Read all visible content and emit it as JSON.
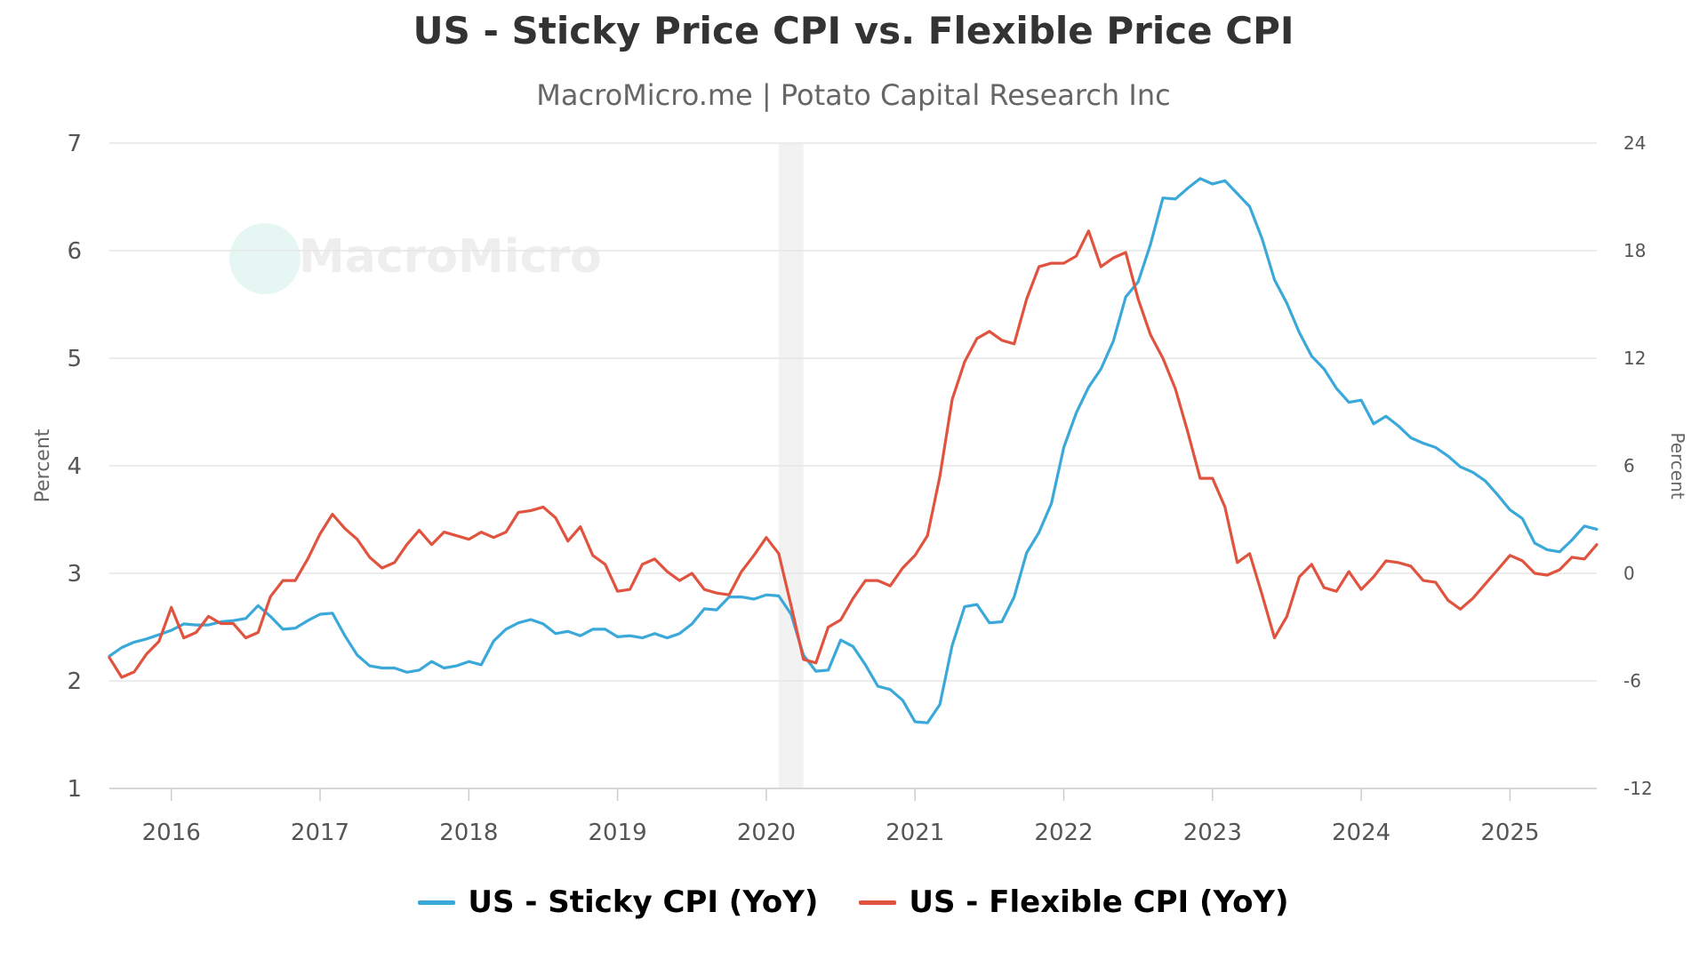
{
  "chart_data": {
    "type": "line",
    "title": "US - Sticky Price CPI vs. Flexible Price CPI",
    "subtitle": "MacroMicro.me | Potato Capital Research Inc",
    "watermark": "MacroMicro",
    "x_ticks": [
      "2016",
      "2017",
      "2018",
      "2019",
      "2020",
      "2021",
      "2022",
      "2023",
      "2024",
      "2025"
    ],
    "left_axis": {
      "label": "Percent",
      "range": [
        1,
        7
      ],
      "ticks": [
        "1",
        "2",
        "3",
        "4",
        "5",
        "6",
        "7"
      ]
    },
    "right_axis": {
      "label": "Percent",
      "range": [
        -12,
        24
      ],
      "ticks": [
        "-12",
        "-6",
        "0",
        "6",
        "12",
        "18",
        "24"
      ]
    },
    "x_range": [
      "2015-08",
      "2025-08"
    ],
    "grid": true,
    "legend_position": "bottom",
    "shaded_region": [
      "2020-02",
      "2020-04"
    ],
    "shaded_color": "#f2f2f2",
    "series": [
      {
        "name": "US - Sticky CPI (YoY)",
        "axis": "left",
        "color": "#3aa9d9",
        "points": [
          [
            "2015-08",
            2.23
          ],
          [
            "2015-09",
            2.31
          ],
          [
            "2015-10",
            2.36
          ],
          [
            "2015-11",
            2.39
          ],
          [
            "2015-12",
            2.43
          ],
          [
            "2016-01",
            2.47
          ],
          [
            "2016-02",
            2.53
          ],
          [
            "2016-03",
            2.52
          ],
          [
            "2016-04",
            2.52
          ],
          [
            "2016-05",
            2.55
          ],
          [
            "2016-06",
            2.56
          ],
          [
            "2016-07",
            2.58
          ],
          [
            "2016-08",
            2.7
          ],
          [
            "2016-09",
            2.6
          ],
          [
            "2016-10",
            2.48
          ],
          [
            "2016-11",
            2.49
          ],
          [
            "2016-12",
            2.56
          ],
          [
            "2017-01",
            2.62
          ],
          [
            "2017-02",
            2.63
          ],
          [
            "2017-03",
            2.42
          ],
          [
            "2017-04",
            2.24
          ],
          [
            "2017-05",
            2.14
          ],
          [
            "2017-06",
            2.12
          ],
          [
            "2017-07",
            2.12
          ],
          [
            "2017-08",
            2.08
          ],
          [
            "2017-09",
            2.1
          ],
          [
            "2017-10",
            2.18
          ],
          [
            "2017-11",
            2.12
          ],
          [
            "2017-12",
            2.14
          ],
          [
            "2018-01",
            2.18
          ],
          [
            "2018-02",
            2.15
          ],
          [
            "2018-03",
            2.37
          ],
          [
            "2018-04",
            2.48
          ],
          [
            "2018-05",
            2.54
          ],
          [
            "2018-06",
            2.57
          ],
          [
            "2018-07",
            2.53
          ],
          [
            "2018-08",
            2.44
          ],
          [
            "2018-09",
            2.46
          ],
          [
            "2018-10",
            2.42
          ],
          [
            "2018-11",
            2.48
          ],
          [
            "2018-12",
            2.48
          ],
          [
            "2019-01",
            2.41
          ],
          [
            "2019-02",
            2.42
          ],
          [
            "2019-03",
            2.4
          ],
          [
            "2019-04",
            2.44
          ],
          [
            "2019-05",
            2.4
          ],
          [
            "2019-06",
            2.44
          ],
          [
            "2019-07",
            2.53
          ],
          [
            "2019-08",
            2.67
          ],
          [
            "2019-09",
            2.66
          ],
          [
            "2019-10",
            2.78
          ],
          [
            "2019-11",
            2.78
          ],
          [
            "2019-12",
            2.76
          ],
          [
            "2020-01",
            2.8
          ],
          [
            "2020-02",
            2.79
          ],
          [
            "2020-03",
            2.62
          ],
          [
            "2020-04",
            2.24
          ],
          [
            "2020-05",
            2.09
          ],
          [
            "2020-06",
            2.1
          ],
          [
            "2020-07",
            2.38
          ],
          [
            "2020-08",
            2.32
          ],
          [
            "2020-09",
            2.15
          ],
          [
            "2020-10",
            1.95
          ],
          [
            "2020-11",
            1.92
          ],
          [
            "2020-12",
            1.82
          ],
          [
            "2021-01",
            1.62
          ],
          [
            "2021-02",
            1.61
          ],
          [
            "2021-03",
            1.78
          ],
          [
            "2021-04",
            2.33
          ],
          [
            "2021-05",
            2.69
          ],
          [
            "2021-06",
            2.71
          ],
          [
            "2021-07",
            2.54
          ],
          [
            "2021-08",
            2.55
          ],
          [
            "2021-09",
            2.78
          ],
          [
            "2021-10",
            3.19
          ],
          [
            "2021-11",
            3.38
          ],
          [
            "2021-12",
            3.65
          ],
          [
            "2022-01",
            4.17
          ],
          [
            "2022-02",
            4.49
          ],
          [
            "2022-03",
            4.73
          ],
          [
            "2022-04",
            4.9
          ],
          [
            "2022-05",
            5.16
          ],
          [
            "2022-06",
            5.57
          ],
          [
            "2022-07",
            5.71
          ],
          [
            "2022-08",
            6.06
          ],
          [
            "2022-09",
            6.49
          ],
          [
            "2022-10",
            6.48
          ],
          [
            "2022-11",
            6.58
          ],
          [
            "2022-12",
            6.67
          ],
          [
            "2023-01",
            6.62
          ],
          [
            "2023-02",
            6.65
          ],
          [
            "2023-03",
            6.53
          ],
          [
            "2023-04",
            6.41
          ],
          [
            "2023-05",
            6.11
          ],
          [
            "2023-06",
            5.73
          ],
          [
            "2023-07",
            5.51
          ],
          [
            "2023-08",
            5.24
          ],
          [
            "2023-09",
            5.02
          ],
          [
            "2023-10",
            4.9
          ],
          [
            "2023-11",
            4.72
          ],
          [
            "2023-12",
            4.59
          ],
          [
            "2024-01",
            4.61
          ],
          [
            "2024-02",
            4.39
          ],
          [
            "2024-03",
            4.46
          ],
          [
            "2024-04",
            4.37
          ],
          [
            "2024-05",
            4.26
          ],
          [
            "2024-06",
            4.21
          ],
          [
            "2024-07",
            4.17
          ],
          [
            "2024-08",
            4.09
          ],
          [
            "2024-09",
            3.99
          ],
          [
            "2024-10",
            3.94
          ],
          [
            "2024-11",
            3.86
          ],
          [
            "2024-12",
            3.73
          ],
          [
            "2025-01",
            3.59
          ],
          [
            "2025-02",
            3.51
          ],
          [
            "2025-03",
            3.28
          ],
          [
            "2025-04",
            3.22
          ],
          [
            "2025-05",
            3.2
          ],
          [
            "2025-06",
            3.31
          ],
          [
            "2025-07",
            3.44
          ],
          [
            "2025-08",
            3.41
          ]
        ]
      },
      {
        "name": "US - Flexible CPI (YoY)",
        "axis": "right",
        "color": "#e0533f",
        "points": [
          [
            "2015-08",
            -4.7
          ],
          [
            "2015-09",
            -5.8
          ],
          [
            "2015-10",
            -5.5
          ],
          [
            "2015-11",
            -4.5
          ],
          [
            "2015-12",
            -3.8
          ],
          [
            "2016-01",
            -1.9
          ],
          [
            "2016-02",
            -3.6
          ],
          [
            "2016-03",
            -3.3
          ],
          [
            "2016-04",
            -2.4
          ],
          [
            "2016-05",
            -2.8
          ],
          [
            "2016-06",
            -2.8
          ],
          [
            "2016-07",
            -3.6
          ],
          [
            "2016-08",
            -3.3
          ],
          [
            "2016-09",
            -1.3
          ],
          [
            "2016-10",
            -0.4
          ],
          [
            "2016-11",
            -0.4
          ],
          [
            "2016-12",
            0.8
          ],
          [
            "2017-01",
            2.2
          ],
          [
            "2017-02",
            3.3
          ],
          [
            "2017-03",
            2.5
          ],
          [
            "2017-04",
            1.9
          ],
          [
            "2017-05",
            0.9
          ],
          [
            "2017-06",
            0.3
          ],
          [
            "2017-07",
            0.6
          ],
          [
            "2017-08",
            1.6
          ],
          [
            "2017-09",
            2.4
          ],
          [
            "2017-10",
            1.6
          ],
          [
            "2017-11",
            2.3
          ],
          [
            "2017-12",
            2.1
          ],
          [
            "2018-01",
            1.9
          ],
          [
            "2018-02",
            2.3
          ],
          [
            "2018-03",
            2.0
          ],
          [
            "2018-04",
            2.3
          ],
          [
            "2018-05",
            3.4
          ],
          [
            "2018-06",
            3.5
          ],
          [
            "2018-07",
            3.7
          ],
          [
            "2018-08",
            3.1
          ],
          [
            "2018-09",
            1.8
          ],
          [
            "2018-10",
            2.6
          ],
          [
            "2018-11",
            1.0
          ],
          [
            "2018-12",
            0.5
          ],
          [
            "2019-01",
            -1.0
          ],
          [
            "2019-02",
            -0.9
          ],
          [
            "2019-03",
            0.5
          ],
          [
            "2019-04",
            0.8
          ],
          [
            "2019-05",
            0.1
          ],
          [
            "2019-06",
            -0.4
          ],
          [
            "2019-07",
            0.0
          ],
          [
            "2019-08",
            -0.9
          ],
          [
            "2019-09",
            -1.1
          ],
          [
            "2019-10",
            -1.2
          ],
          [
            "2019-11",
            0.1
          ],
          [
            "2019-12",
            1.0
          ],
          [
            "2020-01",
            2.0
          ],
          [
            "2020-02",
            1.1
          ],
          [
            "2020-03",
            -1.8
          ],
          [
            "2020-04",
            -4.8
          ],
          [
            "2020-05",
            -5.0
          ],
          [
            "2020-06",
            -3.0
          ],
          [
            "2020-07",
            -2.6
          ],
          [
            "2020-08",
            -1.4
          ],
          [
            "2020-09",
            -0.4
          ],
          [
            "2020-10",
            -0.4
          ],
          [
            "2020-11",
            -0.7
          ],
          [
            "2020-12",
            0.3
          ],
          [
            "2021-01",
            1.0
          ],
          [
            "2021-02",
            2.1
          ],
          [
            "2021-03",
            5.4
          ],
          [
            "2021-04",
            9.7
          ],
          [
            "2021-05",
            11.8
          ],
          [
            "2021-06",
            13.1
          ],
          [
            "2021-07",
            13.5
          ],
          [
            "2021-08",
            13.0
          ],
          [
            "2021-09",
            12.8
          ],
          [
            "2021-10",
            15.3
          ],
          [
            "2021-11",
            17.1
          ],
          [
            "2021-12",
            17.3
          ],
          [
            "2022-01",
            17.3
          ],
          [
            "2022-02",
            17.7
          ],
          [
            "2022-03",
            19.1
          ],
          [
            "2022-04",
            17.1
          ],
          [
            "2022-05",
            17.6
          ],
          [
            "2022-06",
            17.9
          ],
          [
            "2022-07",
            15.3
          ],
          [
            "2022-08",
            13.3
          ],
          [
            "2022-09",
            12.0
          ],
          [
            "2022-10",
            10.3
          ],
          [
            "2022-11",
            7.9
          ],
          [
            "2022-12",
            5.3
          ],
          [
            "2023-01",
            5.3
          ],
          [
            "2023-02",
            3.7
          ],
          [
            "2023-03",
            0.6
          ],
          [
            "2023-04",
            1.1
          ],
          [
            "2023-05",
            -1.2
          ],
          [
            "2023-06",
            -3.6
          ],
          [
            "2023-07",
            -2.4
          ],
          [
            "2023-08",
            -0.2
          ],
          [
            "2023-09",
            0.5
          ],
          [
            "2023-10",
            -0.8
          ],
          [
            "2023-11",
            -1.0
          ],
          [
            "2023-12",
            0.1
          ],
          [
            "2024-01",
            -0.9
          ],
          [
            "2024-02",
            -0.2
          ],
          [
            "2024-03",
            0.7
          ],
          [
            "2024-04",
            0.6
          ],
          [
            "2024-05",
            0.4
          ],
          [
            "2024-06",
            -0.4
          ],
          [
            "2024-07",
            -0.5
          ],
          [
            "2024-08",
            -1.5
          ],
          [
            "2024-09",
            -2.0
          ],
          [
            "2024-10",
            -1.4
          ],
          [
            "2024-11",
            -0.6
          ],
          [
            "2024-12",
            0.2
          ],
          [
            "2025-01",
            1.0
          ],
          [
            "2025-02",
            0.7
          ],
          [
            "2025-03",
            0.0
          ],
          [
            "2025-04",
            -0.1
          ],
          [
            "2025-05",
            0.2
          ],
          [
            "2025-06",
            0.9
          ],
          [
            "2025-07",
            0.8
          ],
          [
            "2025-08",
            1.6
          ]
        ]
      }
    ]
  }
}
